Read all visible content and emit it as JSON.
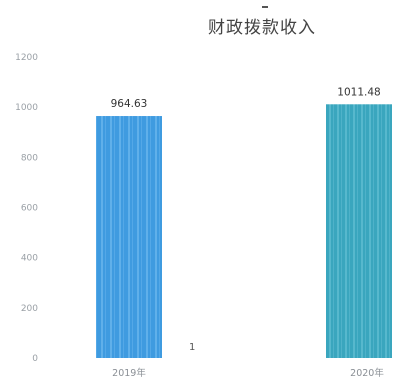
{
  "chart_data": {
    "type": "bar",
    "title": "财政拨款收入",
    "categories": [
      "2019年",
      "2020年"
    ],
    "values": [
      964.63,
      1011.48
    ],
    "data_labels": [
      "964.63",
      "1011.48"
    ],
    "ylim": [
      0,
      1200
    ],
    "yticks": [
      "0",
      "200",
      "400",
      "600",
      "800",
      "1000",
      "1200"
    ],
    "grid": false,
    "legend": "none",
    "stray_text": "1",
    "colors": {
      "bar_2019": "#3f9be0",
      "bar_2019_stripe": "#7cc0f2",
      "bar_2020": "#3aa6be",
      "bar_2020_stripe": "#74c9dc",
      "tick_text": "#9aa0a6",
      "title_text": "#444444"
    }
  }
}
